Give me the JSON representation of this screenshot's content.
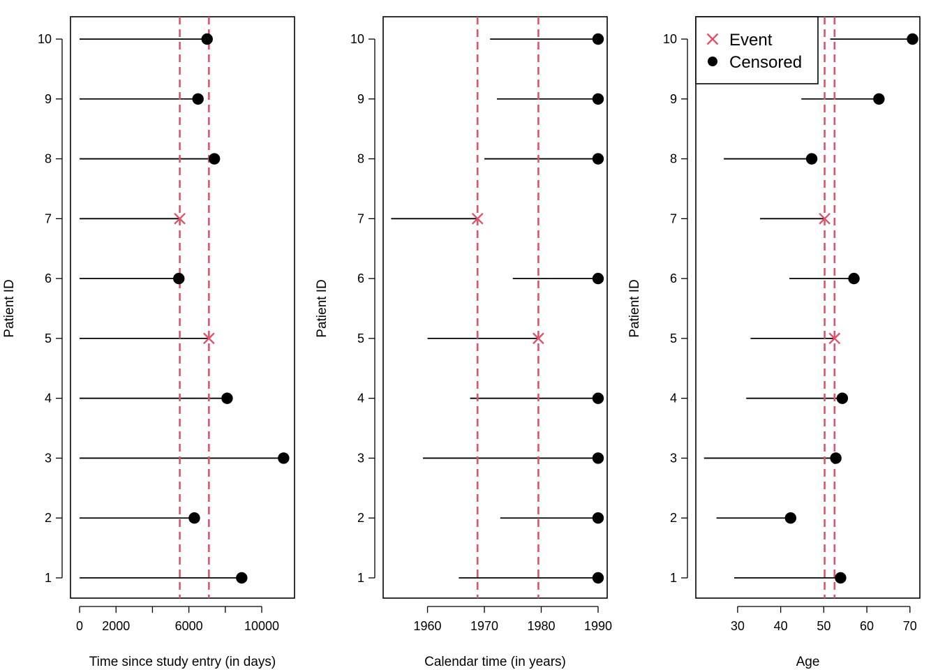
{
  "colors": {
    "event": "#DF536B",
    "censored": "#000000"
  },
  "chart_data": [
    {
      "type": "scatter",
      "subtype": "swimmer-plot",
      "xlabel": "Time since study entry (in days)",
      "ylabel": "Patient ID",
      "xlim": [
        -500,
        11800
      ],
      "xticks": [
        0,
        2000,
        4000,
        6000,
        8000,
        10000
      ],
      "xtick_labels": [
        "0",
        "2000",
        "",
        "6000",
        "",
        "10000"
      ],
      "yticks": [
        1,
        2,
        3,
        4,
        5,
        6,
        7,
        8,
        9,
        10
      ],
      "ytick_labels": [
        "1",
        "2",
        "3",
        "4",
        "5",
        "6",
        "7",
        "8",
        "9",
        "10"
      ],
      "vlines": [
        5500,
        7100
      ],
      "segments": [
        {
          "id": 1,
          "start": 0,
          "end": 8900,
          "status": "censored"
        },
        {
          "id": 2,
          "start": 0,
          "end": 6300,
          "status": "censored"
        },
        {
          "id": 3,
          "start": 0,
          "end": 11200,
          "status": "censored"
        },
        {
          "id": 4,
          "start": 0,
          "end": 8100,
          "status": "censored"
        },
        {
          "id": 5,
          "start": 0,
          "end": 7100,
          "status": "event"
        },
        {
          "id": 6,
          "start": 0,
          "end": 5450,
          "status": "censored"
        },
        {
          "id": 7,
          "start": 0,
          "end": 5500,
          "status": "event"
        },
        {
          "id": 8,
          "start": 0,
          "end": 7400,
          "status": "censored"
        },
        {
          "id": 9,
          "start": 0,
          "end": 6500,
          "status": "censored"
        },
        {
          "id": 10,
          "start": 0,
          "end": 7000,
          "status": "censored"
        }
      ]
    },
    {
      "type": "scatter",
      "subtype": "swimmer-plot",
      "xlabel": "Calendar time (in years)",
      "ylabel": "Patient ID",
      "xlim": [
        1952.2,
        1991.6
      ],
      "xticks": [
        1960,
        1970,
        1980,
        1990
      ],
      "xtick_labels": [
        "1960",
        "1970",
        "1980",
        "1990"
      ],
      "yticks": [
        1,
        2,
        3,
        4,
        5,
        6,
        7,
        8,
        9,
        10
      ],
      "ytick_labels": [
        "1",
        "2",
        "3",
        "4",
        "5",
        "6",
        "7",
        "8",
        "9",
        "10"
      ],
      "vlines": [
        1968.8,
        1979.5
      ],
      "segments": [
        {
          "id": 1,
          "start": 1965.5,
          "end": 1990,
          "status": "censored"
        },
        {
          "id": 2,
          "start": 1972.8,
          "end": 1990,
          "status": "censored"
        },
        {
          "id": 3,
          "start": 1959.2,
          "end": 1990,
          "status": "censored"
        },
        {
          "id": 4,
          "start": 1967.5,
          "end": 1990,
          "status": "censored"
        },
        {
          "id": 5,
          "start": 1960.0,
          "end": 1979.5,
          "status": "event"
        },
        {
          "id": 6,
          "start": 1975.0,
          "end": 1990,
          "status": "censored"
        },
        {
          "id": 7,
          "start": 1953.6,
          "end": 1968.8,
          "status": "event"
        },
        {
          "id": 8,
          "start": 1970.0,
          "end": 1990,
          "status": "censored"
        },
        {
          "id": 9,
          "start": 1972.2,
          "end": 1990,
          "status": "censored"
        },
        {
          "id": 10,
          "start": 1971.0,
          "end": 1990,
          "status": "censored"
        }
      ]
    },
    {
      "type": "scatter",
      "subtype": "swimmer-plot",
      "xlabel": "Age",
      "ylabel": "Patient ID",
      "xlim": [
        20.3,
        72.3
      ],
      "xticks": [
        30,
        40,
        50,
        60,
        70
      ],
      "xtick_labels": [
        "30",
        "40",
        "50",
        "60",
        "70"
      ],
      "yticks": [
        1,
        2,
        3,
        4,
        5,
        6,
        7,
        8,
        9,
        10
      ],
      "ytick_labels": [
        "1",
        "2",
        "3",
        "4",
        "5",
        "6",
        "7",
        "8",
        "9",
        "10"
      ],
      "vlines": [
        50.2,
        52.5
      ],
      "legend": {
        "position": "top-left",
        "entries": [
          {
            "label": "Event",
            "marker": "cross",
            "status": "event"
          },
          {
            "label": "Censored",
            "marker": "filled-circle",
            "status": "censored"
          }
        ]
      },
      "segments": [
        {
          "id": 1,
          "start": 29.2,
          "end": 53.9,
          "status": "censored"
        },
        {
          "id": 2,
          "start": 25.1,
          "end": 42.3,
          "status": "censored"
        },
        {
          "id": 3,
          "start": 22.2,
          "end": 52.8,
          "status": "censored"
        },
        {
          "id": 4,
          "start": 32.0,
          "end": 54.3,
          "status": "censored"
        },
        {
          "id": 5,
          "start": 33.0,
          "end": 52.5,
          "status": "event"
        },
        {
          "id": 6,
          "start": 42.0,
          "end": 57.0,
          "status": "censored"
        },
        {
          "id": 7,
          "start": 35.2,
          "end": 50.2,
          "status": "event"
        },
        {
          "id": 8,
          "start": 26.8,
          "end": 47.2,
          "status": "censored"
        },
        {
          "id": 9,
          "start": 44.8,
          "end": 62.8,
          "status": "censored"
        },
        {
          "id": 10,
          "start": 51.5,
          "end": 70.6,
          "status": "censored"
        }
      ]
    }
  ]
}
